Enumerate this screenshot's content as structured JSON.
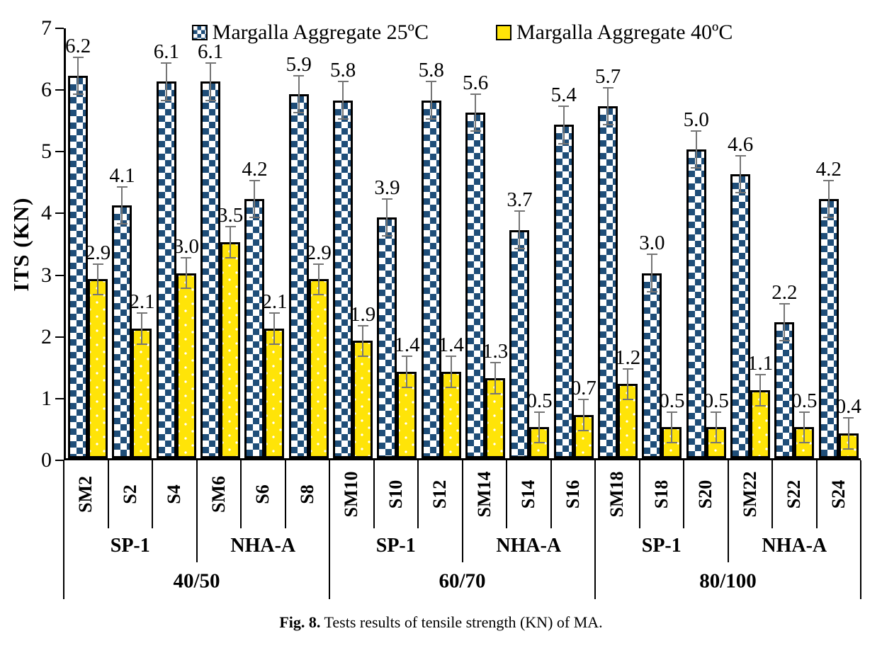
{
  "y_axis": {
    "label": "ITS (KN)"
  },
  "caption": {
    "prefix": "Fig. 8.",
    "text": " Tests results of tensile strength (KN) of MA."
  },
  "chart_data": {
    "type": "bar",
    "title": "",
    "xlabel": "",
    "ylabel": "ITS (KN)",
    "ylim": [
      0,
      7
    ],
    "yticks": [
      0,
      1,
      2,
      3,
      4,
      5,
      6,
      7
    ],
    "grid": false,
    "legend_position": "top",
    "categories": [
      "SM2",
      "S2",
      "S4",
      "SM6",
      "S6",
      "S8",
      "SM10",
      "S10",
      "S12",
      "SM14",
      "S14",
      "S16",
      "SM18",
      "S18",
      "S20",
      "SM22",
      "S22",
      "S24"
    ],
    "series": [
      {
        "name": "Margalla Aggregate 25ºC",
        "color": "#1F4E79",
        "pattern": "checker",
        "error": 0.3,
        "values": [
          6.2,
          4.1,
          6.1,
          6.1,
          4.2,
          5.9,
          5.8,
          3.9,
          5.8,
          5.6,
          3.7,
          5.4,
          5.7,
          3.0,
          5.0,
          4.6,
          2.2,
          4.2
        ]
      },
      {
        "name": "Margalla Aggregate 40ºC",
        "color": "#FFE408",
        "pattern": "dots",
        "error": 0.25,
        "values": [
          2.9,
          2.1,
          3.0,
          3.5,
          2.1,
          2.9,
          1.9,
          1.4,
          1.4,
          1.3,
          0.5,
          0.7,
          1.2,
          0.5,
          0.5,
          1.1,
          0.5,
          0.4
        ]
      }
    ],
    "subgroups": [
      {
        "label": "SP-1",
        "span": 3
      },
      {
        "label": "NHA-A",
        "span": 3
      },
      {
        "label": "SP-1",
        "span": 3
      },
      {
        "label": "NHA-A",
        "span": 3
      },
      {
        "label": "SP-1",
        "span": 3
      },
      {
        "label": "NHA-A",
        "span": 3
      }
    ],
    "groups": [
      {
        "label": "40/50",
        "span": 6
      },
      {
        "label": "60/70",
        "span": 6
      },
      {
        "label": "80/100",
        "span": 6
      }
    ],
    "error_bar_color": "#757575",
    "bar_border_color": "#000000"
  }
}
